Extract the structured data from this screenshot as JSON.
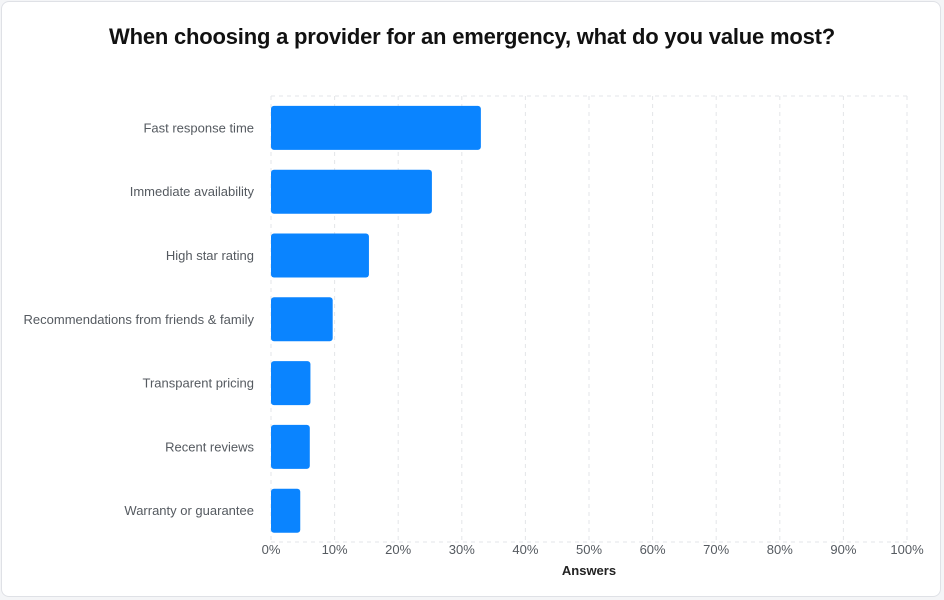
{
  "chart_data": {
    "type": "bar",
    "orientation": "horizontal",
    "title": "When choosing a provider for an emergency, what do you value most?",
    "xlabel": "Answers",
    "ylabel": "",
    "categories": [
      "Fast response time",
      "Immediate availability",
      "High star rating",
      "Recommendations from friends & family",
      "Transparent pricing",
      "Recent reviews",
      "Warranty or guarantee"
    ],
    "values": [
      33,
      25.3,
      15.4,
      9.7,
      6.2,
      6.1,
      4.6
    ],
    "xlim": [
      0,
      100
    ],
    "ticks": [
      "0%",
      "10%",
      "20%",
      "30%",
      "40%",
      "50%",
      "60%",
      "70%",
      "80%",
      "90%",
      "100%"
    ],
    "grid": true,
    "bar_color": "#0a84ff"
  }
}
